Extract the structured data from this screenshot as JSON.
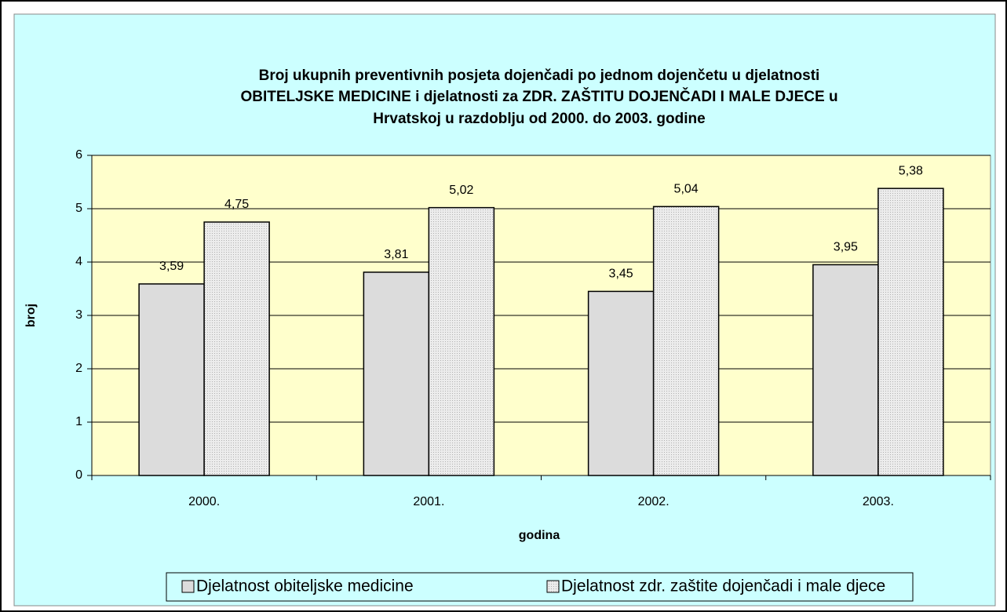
{
  "chart_data": {
    "type": "bar",
    "title": [
      "Broj ukupnih preventivnih posjeta dojenčadi po jednom dojenčetu u djelatnosti",
      "OBITELJSKE MEDICINE i djelatnosti za ZDR. ZAŠTITU DOJENČADI I MALE DJECE u",
      "Hrvatskoj u razdoblju od 2000. do 2003. godine"
    ],
    "xlabel": "godina",
    "ylabel": "broj",
    "categories": [
      "2000.",
      "2001.",
      "2002.",
      "2003."
    ],
    "series": [
      {
        "name": "Djelatnost obiteljske medicine",
        "color": "#dcdcdc",
        "values": [
          3.59,
          3.81,
          3.45,
          3.95
        ],
        "value_labels": [
          "3,59",
          "3,81",
          "3,45",
          "3,95"
        ]
      },
      {
        "name": "Djelatnost zdr. zaštite dojenčadi i male djece",
        "color": "#e8e8e8",
        "values": [
          4.75,
          5.02,
          5.04,
          5.38
        ],
        "value_labels": [
          "4,75",
          "5,02",
          "5,04",
          "5,38"
        ]
      }
    ],
    "ylim": [
      0,
      6
    ],
    "yticks": [
      0,
      1,
      2,
      3,
      4,
      5,
      6
    ],
    "grid": true,
    "legend": "bottom"
  }
}
